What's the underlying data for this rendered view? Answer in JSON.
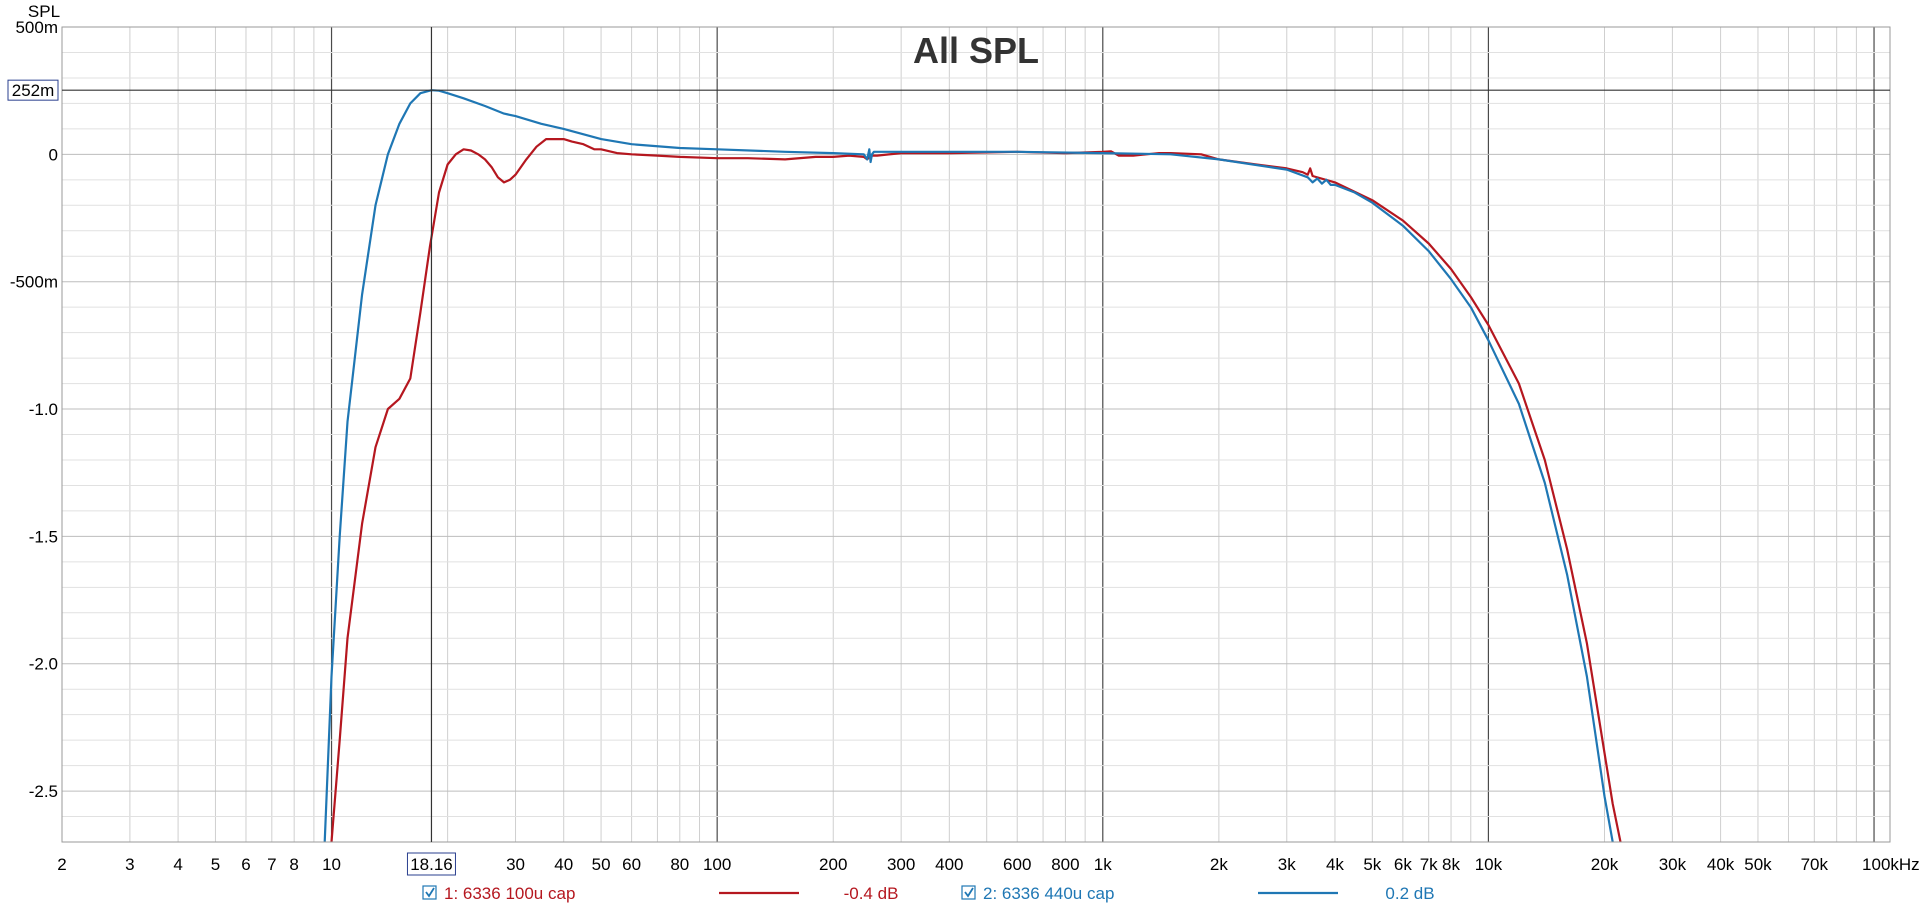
{
  "chart_data": {
    "type": "line",
    "title": "All SPL",
    "ylabel": "SPL",
    "xunit": "kHz",
    "xscale": "log",
    "xlim": [
      2,
      110000
    ],
    "ylim": [
      -2.7,
      0.5
    ],
    "grid": true,
    "y_ticks": [
      {
        "value": 0.5,
        "label": "500m"
      },
      {
        "value": 0,
        "label": "0"
      },
      {
        "value": -0.5,
        "label": "-500m"
      },
      {
        "value": -1.0,
        "label": "-1.0"
      },
      {
        "value": -1.5,
        "label": "-1.5"
      },
      {
        "value": -2.0,
        "label": "-2.0"
      },
      {
        "value": -2.5,
        "label": "-2.5"
      }
    ],
    "x_ticks": [
      {
        "value": 2,
        "label": "2"
      },
      {
        "value": 3,
        "label": "3"
      },
      {
        "value": 4,
        "label": "4"
      },
      {
        "value": 5,
        "label": "5"
      },
      {
        "value": 6,
        "label": "6"
      },
      {
        "value": 7,
        "label": "7"
      },
      {
        "value": 8,
        "label": "8"
      },
      {
        "value": 10,
        "label": "10"
      },
      {
        "value": 30,
        "label": "30"
      },
      {
        "value": 40,
        "label": "40"
      },
      {
        "value": 50,
        "label": "50"
      },
      {
        "value": 60,
        "label": "60"
      },
      {
        "value": 80,
        "label": "80"
      },
      {
        "value": 100,
        "label": "100"
      },
      {
        "value": 200,
        "label": "200"
      },
      {
        "value": 300,
        "label": "300"
      },
      {
        "value": 400,
        "label": "400"
      },
      {
        "value": 600,
        "label": "600"
      },
      {
        "value": 800,
        "label": "800"
      },
      {
        "value": 1000,
        "label": "1k"
      },
      {
        "value": 2000,
        "label": "2k"
      },
      {
        "value": 3000,
        "label": "3k"
      },
      {
        "value": 4000,
        "label": "4k"
      },
      {
        "value": 5000,
        "label": "5k"
      },
      {
        "value": 6000,
        "label": "6k"
      },
      {
        "value": 7000,
        "label": "7k"
      },
      {
        "value": 8000,
        "label": "8k"
      },
      {
        "value": 10000,
        "label": "10k"
      },
      {
        "value": 20000,
        "label": "20k"
      },
      {
        "value": 30000,
        "label": "30k"
      },
      {
        "value": 40000,
        "label": "40k"
      },
      {
        "value": 50000,
        "label": "50k"
      },
      {
        "value": 70000,
        "label": "70k"
      },
      {
        "value": 100000,
        "label": "100kHz"
      }
    ],
    "cursor": {
      "x": 18.16,
      "x_label": "18.16",
      "y": 0.252,
      "y_label": "252m"
    },
    "series": [
      {
        "name": "1: 6336 100u cap",
        "value_label": "-0.4 dB",
        "color": "#b5171f",
        "x": [
          10,
          10.5,
          11,
          12,
          13,
          14,
          15,
          16,
          17,
          18,
          19,
          20,
          21,
          22,
          23,
          24,
          25,
          26,
          27,
          28,
          29,
          30,
          32,
          34,
          36,
          38,
          40,
          42,
          45,
          48,
          50,
          55,
          60,
          70,
          80,
          100,
          120,
          150,
          180,
          200,
          220,
          240,
          245,
          250,
          255,
          260,
          300,
          400,
          600,
          800,
          1000,
          1050,
          1100,
          1200,
          1300,
          1400,
          1500,
          1800,
          2000,
          2500,
          3000,
          3300,
          3400,
          3450,
          3500,
          4000,
          5000,
          6000,
          7000,
          8000,
          9000,
          10000,
          12000,
          14000,
          16000,
          18000,
          20000,
          21000,
          22000
        ],
        "y": [
          -2.7,
          -2.3,
          -1.9,
          -1.45,
          -1.15,
          -1.0,
          -0.96,
          -0.88,
          -0.62,
          -0.36,
          -0.15,
          -0.04,
          0.0,
          0.02,
          0.015,
          0.0,
          -0.02,
          -0.05,
          -0.09,
          -0.11,
          -0.1,
          -0.08,
          -0.02,
          0.03,
          0.06,
          0.06,
          0.06,
          0.05,
          0.04,
          0.02,
          0.02,
          0.005,
          0.0,
          -0.005,
          -0.01,
          -0.015,
          -0.015,
          -0.02,
          -0.01,
          -0.01,
          -0.005,
          -0.01,
          -0.02,
          -0.005,
          -0.005,
          -0.005,
          0.005,
          0.005,
          0.01,
          0.005,
          0.01,
          0.012,
          -0.005,
          -0.005,
          0.0,
          0.005,
          0.005,
          0.0,
          -0.02,
          -0.04,
          -0.055,
          -0.07,
          -0.08,
          -0.055,
          -0.085,
          -0.11,
          -0.18,
          -0.26,
          -0.35,
          -0.45,
          -0.56,
          -0.67,
          -0.9,
          -1.2,
          -1.55,
          -1.92,
          -2.35,
          -2.55,
          -2.7
        ]
      },
      {
        "name": "2: 6336 440u cap",
        "value_label": "0.2 dB",
        "color": "#1f77b4",
        "x": [
          9.6,
          10,
          10.5,
          11,
          12,
          13,
          14,
          15,
          16,
          17,
          18.16,
          19,
          20,
          22,
          25,
          28,
          30,
          35,
          40,
          50,
          60,
          80,
          100,
          150,
          200,
          240,
          245,
          248,
          250,
          252,
          255,
          300,
          400,
          600,
          1000,
          1500,
          2000,
          3000,
          3400,
          3500,
          3600,
          3700,
          3800,
          3900,
          4000,
          4500,
          5000,
          6000,
          7000,
          8000,
          9000,
          10000,
          12000,
          14000,
          16000,
          18000,
          20000,
          21000
        ],
        "y": [
          -2.7,
          -2.05,
          -1.5,
          -1.05,
          -0.55,
          -0.2,
          0.0,
          0.12,
          0.2,
          0.24,
          0.252,
          0.25,
          0.24,
          0.22,
          0.19,
          0.16,
          0.15,
          0.12,
          0.1,
          0.06,
          0.04,
          0.025,
          0.02,
          0.01,
          0.005,
          0.0,
          -0.02,
          0.02,
          -0.03,
          0.0,
          0.01,
          0.01,
          0.01,
          0.01,
          0.005,
          0.0,
          -0.02,
          -0.06,
          -0.09,
          -0.11,
          -0.095,
          -0.115,
          -0.1,
          -0.12,
          -0.12,
          -0.15,
          -0.19,
          -0.28,
          -0.38,
          -0.49,
          -0.6,
          -0.73,
          -0.98,
          -1.29,
          -1.65,
          -2.05,
          -2.52,
          -2.7
        ]
      }
    ]
  }
}
